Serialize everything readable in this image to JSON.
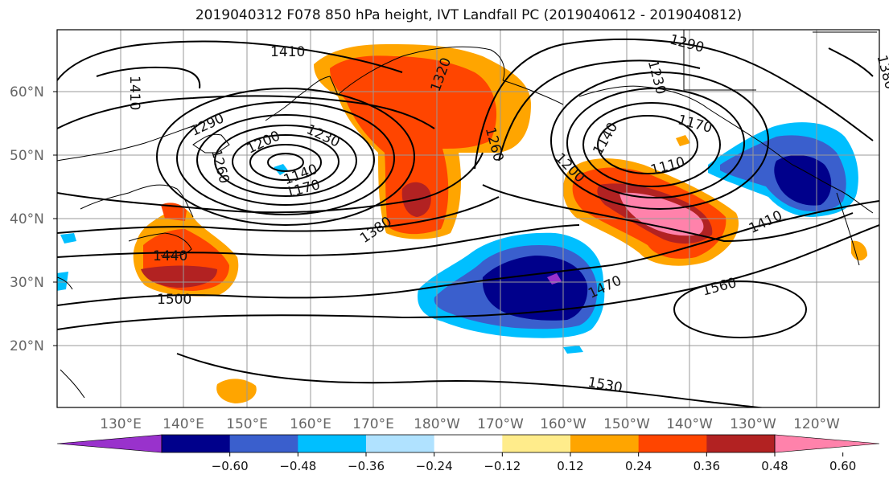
{
  "title": "2019040312 F078 850 hPa height, IVT Landfall PC (2019040612 - 2019040812)",
  "lat_labels": [
    "60°N",
    "50°N",
    "40°N",
    "30°N",
    "20°N"
  ],
  "lon_labels": [
    "130°E",
    "140°E",
    "150°E",
    "160°E",
    "170°E",
    "180°W",
    "170°W",
    "160°W",
    "150°W",
    "140°W",
    "130°W",
    "120°W"
  ],
  "contour_labels": [
    "1410",
    "1410",
    "1290",
    "1260",
    "1200",
    "1230",
    "1140",
    "1170",
    "1320",
    "1260",
    "1380",
    "1440",
    "1500",
    "1230",
    "1140",
    "1170",
    "1110",
    "1200",
    "1410",
    "1470",
    "1560",
    "1530",
    "1290",
    "1380"
  ],
  "colorbar": {
    "colors": [
      "#9932CC",
      "#00008B",
      "#3A5FCD",
      "#00BFFF",
      "#B0E2FF",
      "#FFFFFF",
      "#FFEC8B",
      "#FFA500",
      "#FF4500",
      "#B22222",
      "#FF82AB"
    ],
    "tick_labels": [
      "−0.60",
      "−0.48",
      "−0.36",
      "−0.24",
      "−0.12",
      "0.12",
      "0.24",
      "0.36",
      "0.48",
      "0.60"
    ]
  },
  "colors": {
    "gridline": "#999999",
    "contour": "#000000",
    "axis_text": "#666666"
  }
}
